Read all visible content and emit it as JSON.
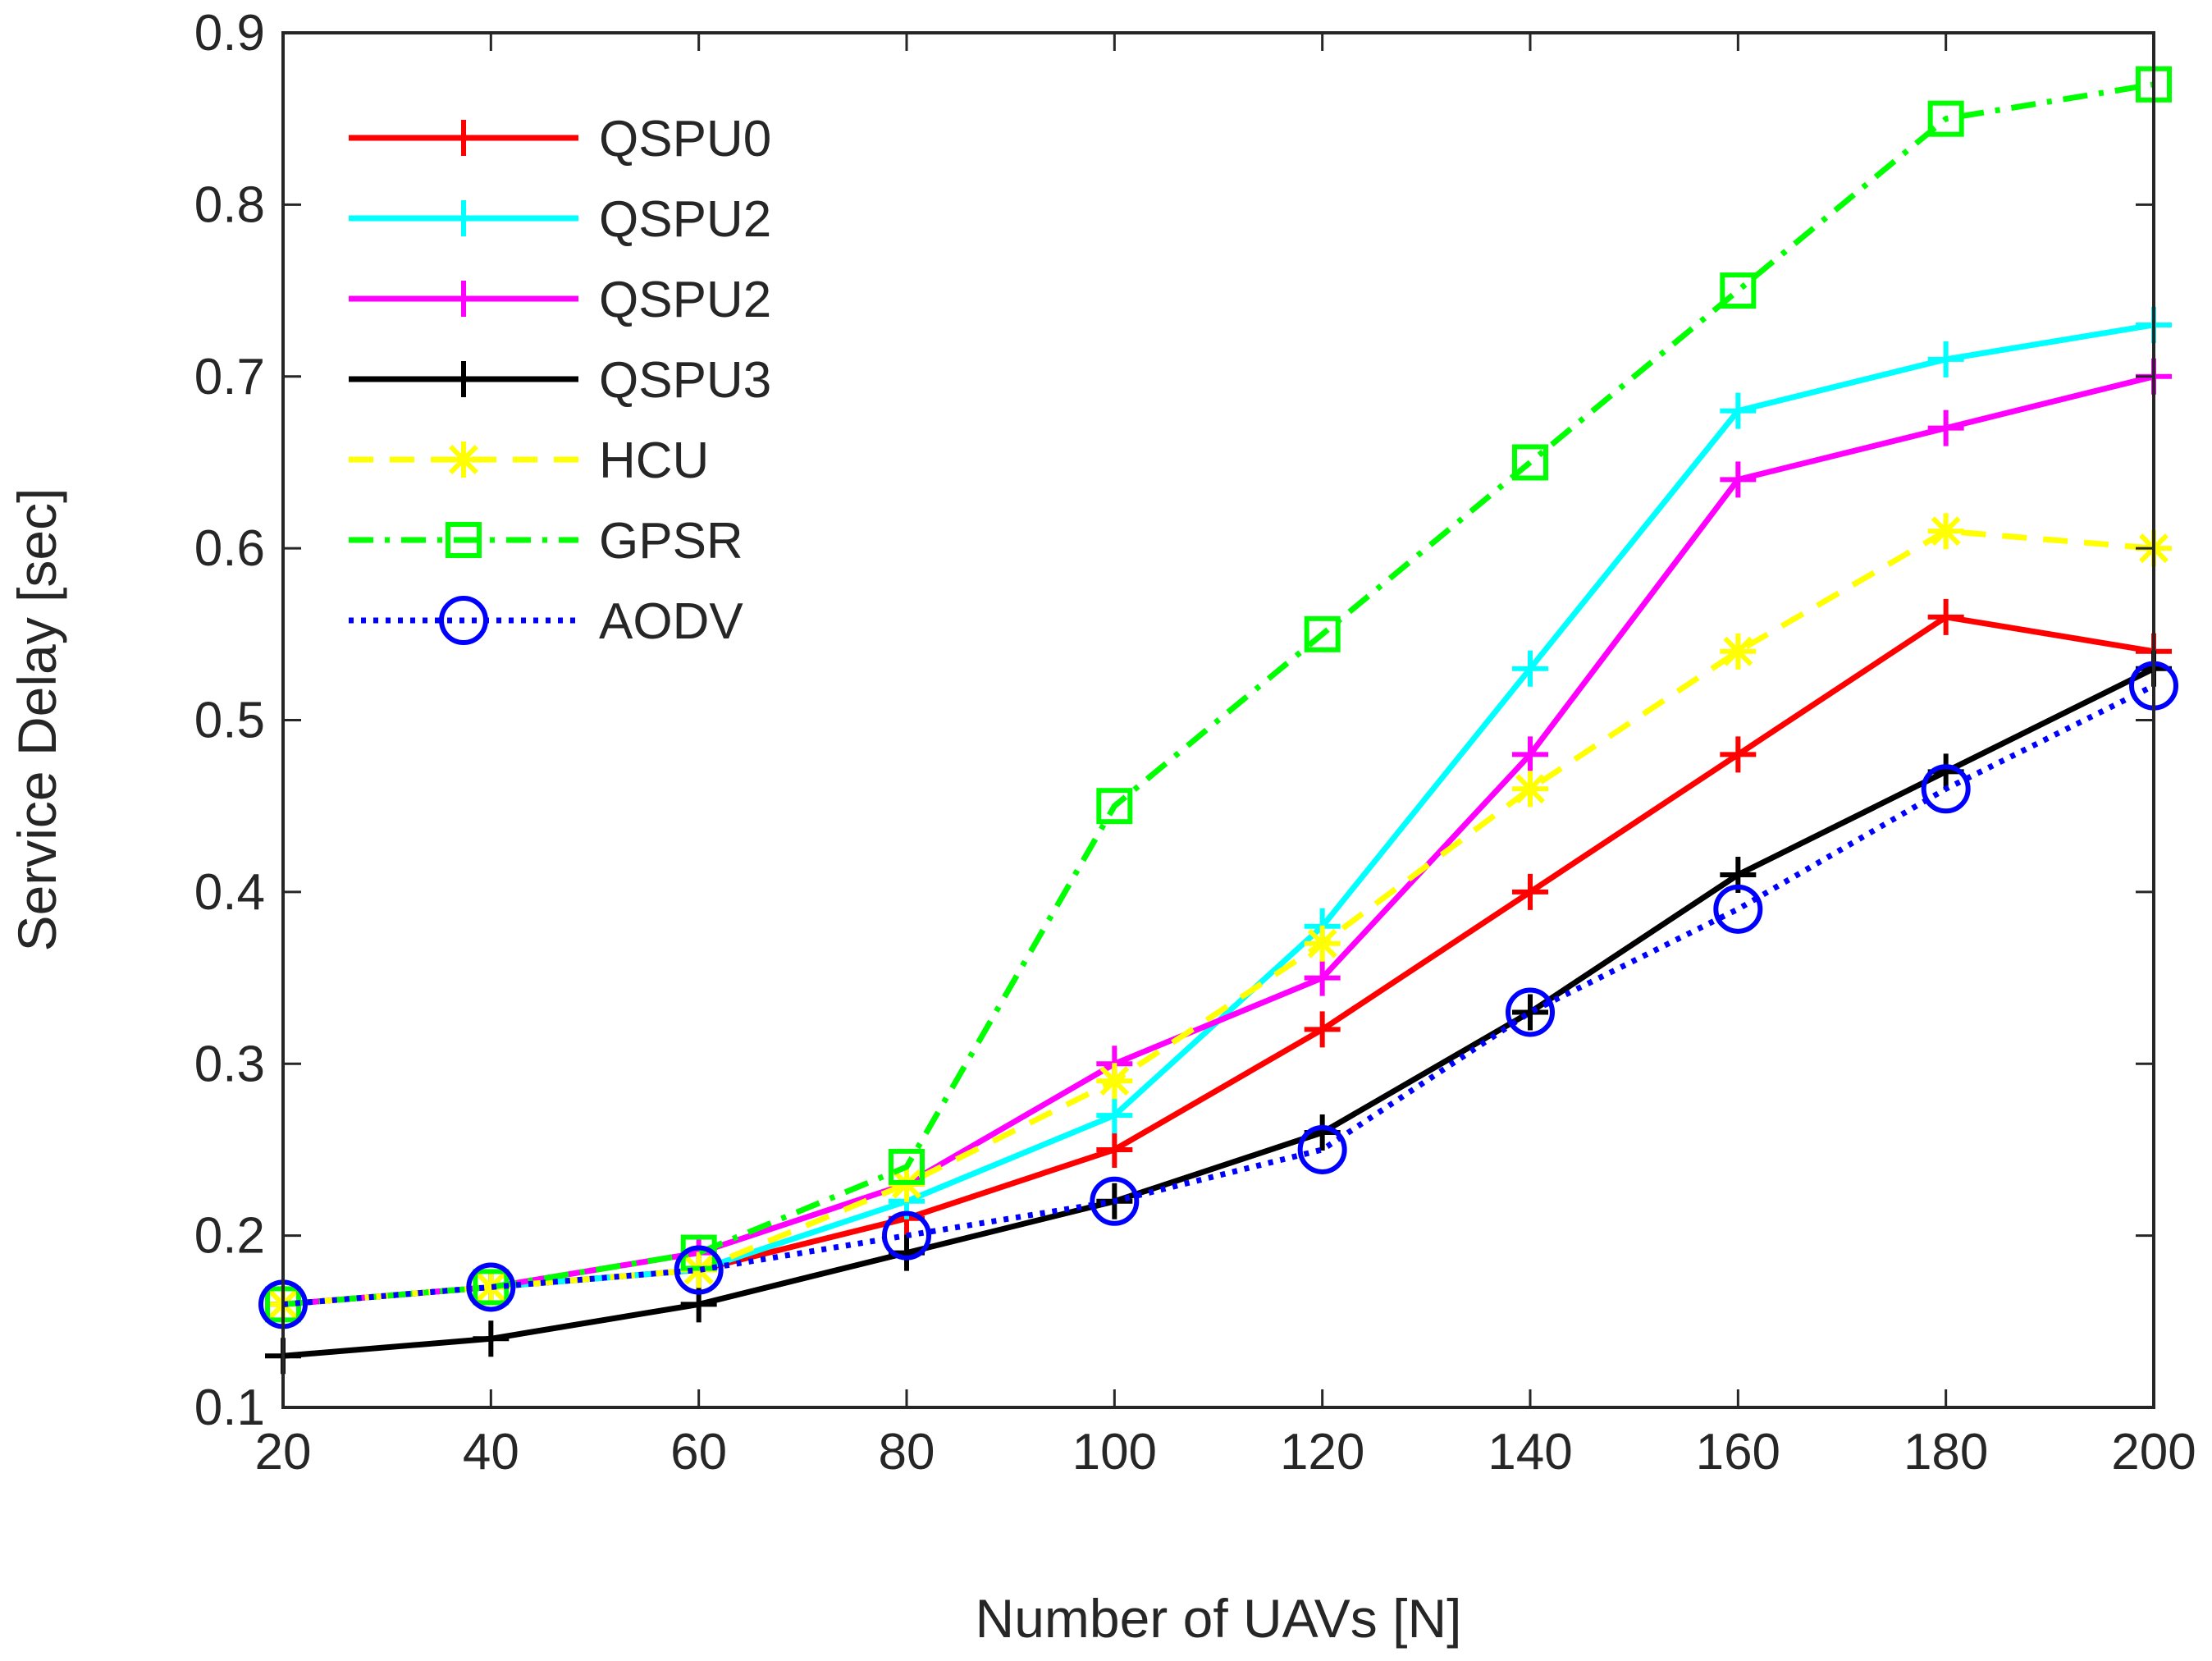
{
  "chart_data": {
    "type": "line",
    "title": "",
    "xlabel": "Number of UAVs [N]",
    "ylabel": "Service Delay [sec]",
    "x": [
      20,
      40,
      60,
      80,
      100,
      120,
      140,
      160,
      180,
      200
    ],
    "xlim": [
      20,
      200
    ],
    "ylim": [
      0.1,
      0.9
    ],
    "xticks": [
      "20",
      "40",
      "60",
      "80",
      "100",
      "120",
      "140",
      "160",
      "180",
      "200"
    ],
    "yticks": [
      "0.1",
      "0.2",
      "0.3",
      "0.4",
      "0.5",
      "0.6",
      "0.7",
      "0.8",
      "0.9"
    ],
    "grid": false,
    "legend_position": "top-left",
    "series": [
      {
        "name": "QSPU0",
        "color": "#ff0000",
        "marker": "plus",
        "line": "solid",
        "values": [
          0.16,
          0.17,
          0.18,
          0.21,
          0.25,
          0.32,
          0.4,
          0.48,
          0.56,
          0.54
        ]
      },
      {
        "name": "QSPU2",
        "color": "#00ffff",
        "marker": "plus",
        "line": "solid",
        "values": [
          0.16,
          0.17,
          0.18,
          0.22,
          0.27,
          0.38,
          0.53,
          0.68,
          0.71,
          0.73
        ]
      },
      {
        "name": "QSPU2",
        "color": "#ff00ff",
        "marker": "plus",
        "line": "solid",
        "values": [
          0.16,
          0.17,
          0.19,
          0.23,
          0.3,
          0.35,
          0.48,
          0.64,
          0.67,
          0.7
        ]
      },
      {
        "name": "QSPU3",
        "color": "#000000",
        "marker": "plus",
        "line": "solid",
        "values": [
          0.13,
          0.14,
          0.16,
          0.19,
          0.22,
          0.26,
          0.33,
          0.41,
          0.47,
          0.53
        ]
      },
      {
        "name": "HCU",
        "color": "#ffff00",
        "marker": "asterisk",
        "line": "dashed",
        "values": [
          0.16,
          0.17,
          0.18,
          0.23,
          0.29,
          0.37,
          0.46,
          0.54,
          0.61,
          0.6
        ]
      },
      {
        "name": "GPSR",
        "color": "#00ff00",
        "marker": "square",
        "line": "dashdot",
        "values": [
          0.16,
          0.17,
          0.19,
          0.24,
          0.45,
          0.55,
          0.65,
          0.75,
          0.85,
          0.87
        ]
      },
      {
        "name": "AODV",
        "color": "#0000ff",
        "marker": "circle",
        "line": "dotted",
        "values": [
          0.16,
          0.17,
          0.18,
          0.2,
          0.22,
          0.25,
          0.33,
          0.39,
          0.46,
          0.52
        ]
      }
    ]
  }
}
